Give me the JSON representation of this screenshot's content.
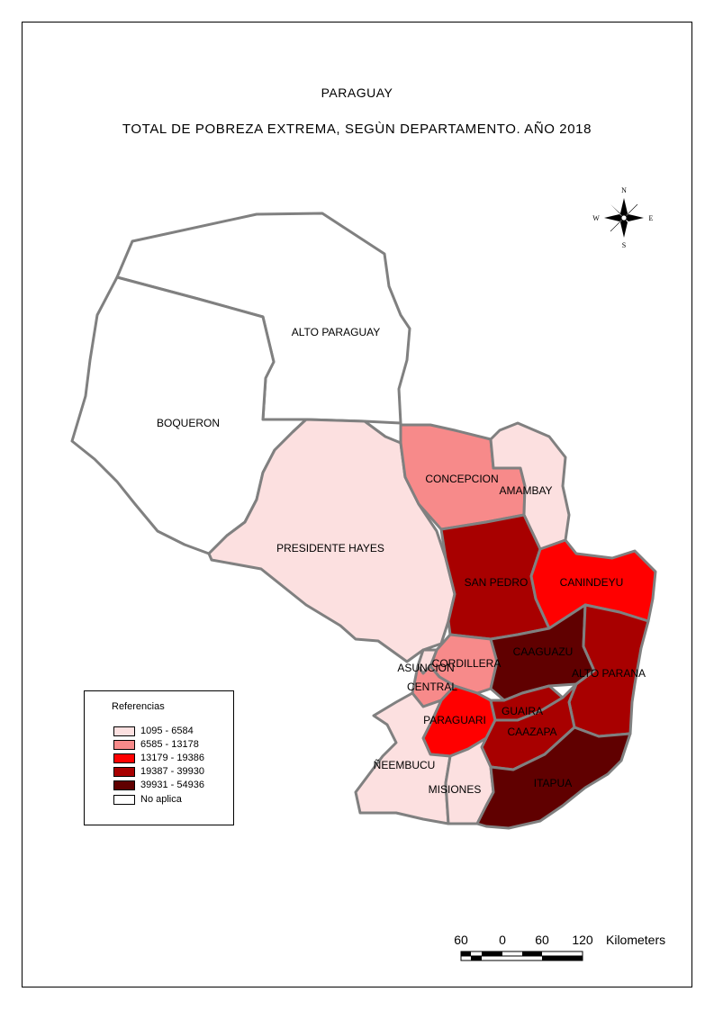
{
  "title": "PARAGUAY",
  "subtitle": "TOTAL DE POBREZA EXTREMA, SEGÙN DEPARTAMENTO. AÑO 2018",
  "colors": {
    "class1": "#fce0e0",
    "class2": "#f78a8a",
    "class3": "#ff0000",
    "class4": "#a80000",
    "class5": "#600000",
    "na": "#ffffff"
  },
  "departments": [
    {
      "name": "ALTO PARAGUAY",
      "class": "na"
    },
    {
      "name": "BOQUERON",
      "class": "na"
    },
    {
      "name": "PRESIDENTE HAYES",
      "class": "class1"
    },
    {
      "name": "CONCEPCION",
      "class": "class2"
    },
    {
      "name": "AMAMBAY",
      "class": "class1"
    },
    {
      "name": "SAN PEDRO",
      "class": "class4"
    },
    {
      "name": "CANINDEYU",
      "class": "class3"
    },
    {
      "name": "CORDILLERA",
      "class": "class2"
    },
    {
      "name": "ASUNCION",
      "class": "class1"
    },
    {
      "name": "CENTRAL",
      "class": "class2"
    },
    {
      "name": "CAAGUAZU",
      "class": "class5"
    },
    {
      "name": "ALTO PARANA",
      "class": "class4"
    },
    {
      "name": "PARAGUARI",
      "class": "class3"
    },
    {
      "name": "GUAIRA",
      "class": "class4"
    },
    {
      "name": "CAAZAPA",
      "class": "class4"
    },
    {
      "name": "ÑEEMBUCU",
      "class": "class1"
    },
    {
      "name": "MISIONES",
      "class": "class1"
    },
    {
      "name": "ITAPUA",
      "class": "class5"
    }
  ],
  "legend": {
    "title": "Referencias",
    "items": [
      {
        "label": "1095 - 6584",
        "class": "class1"
      },
      {
        "label": "6585 - 13178",
        "class": "class2"
      },
      {
        "label": "13179 - 19386",
        "class": "class3"
      },
      {
        "label": "19387 - 39930",
        "class": "class4"
      },
      {
        "label": "39931 - 54936",
        "class": "class5"
      },
      {
        "label": "No aplica",
        "class": "na"
      }
    ]
  },
  "compass": {
    "n": "N",
    "s": "S",
    "e": "E",
    "w": "W"
  },
  "scale": {
    "labels": [
      "60",
      "0",
      "60",
      "120"
    ],
    "unit": "Kilometers"
  }
}
